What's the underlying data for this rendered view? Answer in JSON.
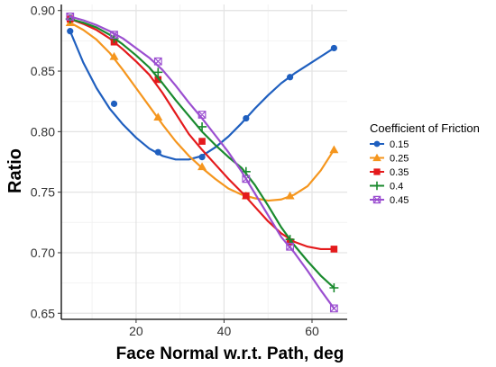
{
  "chart_data": {
    "type": "line",
    "title": "",
    "xlabel": "Face Normal w.r.t. Path, deg",
    "ylabel": "Ratio",
    "xlim": [
      3,
      68
    ],
    "ylim": [
      0.645,
      0.905
    ],
    "x_ticks": [
      20,
      40,
      60
    ],
    "y_ticks": [
      0.65,
      0.7,
      0.75,
      0.8,
      0.85,
      0.9
    ],
    "y_tick_labels": [
      "0.65",
      "0.70",
      "0.75",
      "0.80",
      "0.85",
      "0.90"
    ],
    "grid": true,
    "legend": {
      "title": "Coefficient of Friction",
      "position": "right"
    },
    "x": [
      5,
      15,
      25,
      35,
      45,
      55,
      65
    ],
    "series": [
      {
        "name": "0.15",
        "color": "#1f5fbf",
        "marker": "circle",
        "values": [
          0.883,
          0.823,
          0.783,
          0.779,
          0.811,
          0.845,
          0.869
        ],
        "curve": [
          [
            5,
            0.883
          ],
          [
            8,
            0.857
          ],
          [
            11,
            0.836
          ],
          [
            14,
            0.819
          ],
          [
            17,
            0.806
          ],
          [
            20,
            0.795
          ],
          [
            23,
            0.786
          ],
          [
            26,
            0.78
          ],
          [
            29,
            0.777
          ],
          [
            32,
            0.777
          ],
          [
            35,
            0.78
          ],
          [
            38,
            0.787
          ],
          [
            41,
            0.796
          ],
          [
            44,
            0.807
          ],
          [
            47,
            0.819
          ],
          [
            50,
            0.83
          ],
          [
            53,
            0.84
          ],
          [
            56,
            0.848
          ],
          [
            59,
            0.855
          ],
          [
            62,
            0.862
          ],
          [
            65,
            0.869
          ]
        ]
      },
      {
        "name": "0.25",
        "color": "#f5961e",
        "marker": "triangle",
        "values": [
          0.89,
          0.862,
          0.812,
          0.771,
          0.747,
          0.747,
          0.785
        ],
        "curve": [
          [
            5,
            0.89
          ],
          [
            8,
            0.884
          ],
          [
            11,
            0.876
          ],
          [
            14,
            0.865
          ],
          [
            17,
            0.851
          ],
          [
            20,
            0.836
          ],
          [
            23,
            0.821
          ],
          [
            26,
            0.806
          ],
          [
            29,
            0.792
          ],
          [
            32,
            0.78
          ],
          [
            35,
            0.77
          ],
          [
            38,
            0.761
          ],
          [
            41,
            0.753
          ],
          [
            44,
            0.748
          ],
          [
            47,
            0.745
          ],
          [
            50,
            0.743
          ],
          [
            53,
            0.744
          ],
          [
            56,
            0.748
          ],
          [
            59,
            0.755
          ],
          [
            62,
            0.768
          ],
          [
            65,
            0.785
          ]
        ]
      },
      {
        "name": "0.35",
        "color": "#e41a1c",
        "marker": "square",
        "values": [
          0.893,
          0.874,
          0.843,
          0.792,
          0.747,
          0.709,
          0.703
        ],
        "curve": [
          [
            5,
            0.893
          ],
          [
            8,
            0.889
          ],
          [
            11,
            0.884
          ],
          [
            14,
            0.877
          ],
          [
            17,
            0.868
          ],
          [
            20,
            0.858
          ],
          [
            23,
            0.847
          ],
          [
            26,
            0.832
          ],
          [
            29,
            0.815
          ],
          [
            32,
            0.798
          ],
          [
            35,
            0.785
          ],
          [
            38,
            0.773
          ],
          [
            41,
            0.761
          ],
          [
            44,
            0.75
          ],
          [
            47,
            0.738
          ],
          [
            50,
            0.726
          ],
          [
            53,
            0.716
          ],
          [
            56,
            0.709
          ],
          [
            59,
            0.705
          ],
          [
            62,
            0.703
          ],
          [
            65,
            0.703
          ]
        ]
      },
      {
        "name": "0.4",
        "color": "#1a8a2e",
        "marker": "plus",
        "values": [
          0.893,
          0.877,
          0.849,
          0.804,
          0.767,
          0.711,
          0.671
        ],
        "curve": [
          [
            5,
            0.893
          ],
          [
            8,
            0.89
          ],
          [
            11,
            0.886
          ],
          [
            14,
            0.88
          ],
          [
            17,
            0.872
          ],
          [
            20,
            0.863
          ],
          [
            23,
            0.853
          ],
          [
            26,
            0.84
          ],
          [
            29,
            0.826
          ],
          [
            32,
            0.813
          ],
          [
            35,
            0.8
          ],
          [
            38,
            0.789
          ],
          [
            41,
            0.779
          ],
          [
            44,
            0.77
          ],
          [
            47,
            0.756
          ],
          [
            50,
            0.739
          ],
          [
            53,
            0.721
          ],
          [
            56,
            0.706
          ],
          [
            59,
            0.693
          ],
          [
            62,
            0.681
          ],
          [
            65,
            0.671
          ]
        ]
      },
      {
        "name": "0.45",
        "color": "#9b4fd0",
        "marker": "boxcross",
        "values": [
          0.895,
          0.88,
          0.858,
          0.814,
          0.761,
          0.705,
          0.654
        ],
        "curve": [
          [
            5,
            0.895
          ],
          [
            8,
            0.892
          ],
          [
            11,
            0.888
          ],
          [
            14,
            0.883
          ],
          [
            17,
            0.877
          ],
          [
            20,
            0.869
          ],
          [
            23,
            0.861
          ],
          [
            26,
            0.851
          ],
          [
            29,
            0.838
          ],
          [
            32,
            0.824
          ],
          [
            35,
            0.811
          ],
          [
            38,
            0.797
          ],
          [
            41,
            0.783
          ],
          [
            44,
            0.767
          ],
          [
            47,
            0.749
          ],
          [
            50,
            0.731
          ],
          [
            53,
            0.713
          ],
          [
            56,
            0.7
          ],
          [
            59,
            0.685
          ],
          [
            62,
            0.669
          ],
          [
            65,
            0.654
          ]
        ]
      }
    ]
  }
}
